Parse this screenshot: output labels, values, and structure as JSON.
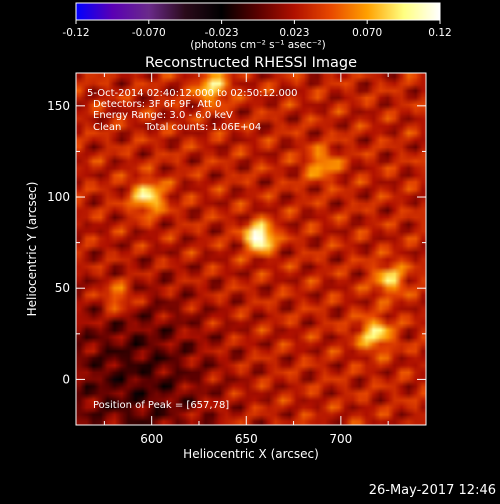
{
  "chart_data": {
    "type": "heatmap",
    "title": "Reconstructed RHESSI Image",
    "xlabel": "Heliocentric X (arcsec)",
    "ylabel": "Heliocentric Y (arcsec)",
    "xlim": [
      560,
      745
    ],
    "ylim": [
      -25,
      168
    ],
    "xticks": [
      600,
      650,
      700
    ],
    "yticks": [
      0,
      50,
      100,
      150
    ],
    "colorbar": {
      "min": -0.12,
      "max": 0.12,
      "tick_labels": [
        "-0.12",
        "-0.070",
        "-0.023",
        "0.023",
        "0.070",
        "0.12"
      ],
      "units": "(photons cm⁻² s⁻¹ asec⁻²)",
      "colors": [
        "#0000ff",
        "#5a00b4",
        "#6a2a8a",
        "#2a0a1a",
        "#000000",
        "#5a0000",
        "#b01000",
        "#e84800",
        "#ffa000",
        "#ffff80",
        "#ffffff"
      ]
    },
    "annotations": {
      "time_range": "5-Oct-2014 02:40:12.000 to 02:50:12.000",
      "detectors": "Detectors: 3F 6F 9F, Att 0",
      "energy": "Energy Range: 3.0 - 6.0 keV",
      "clean": "Clean",
      "total_counts": "Total counts: 1.06E+04",
      "peak": "Position of Peak = [657,78]"
    },
    "peak": {
      "x": 657,
      "y": 78
    },
    "secondary_sources": [
      {
        "x": 598,
        "y": 100,
        "intensity": 0.07
      },
      {
        "x": 718,
        "y": 25,
        "intensity": 0.065
      },
      {
        "x": 726,
        "y": 55,
        "intensity": 0.055
      },
      {
        "x": 632,
        "y": 160,
        "intensity": 0.06
      },
      {
        "x": 582,
        "y": 45,
        "intensity": 0.045
      },
      {
        "x": 690,
        "y": 118,
        "intensity": 0.045
      }
    ],
    "negative_region": {
      "x": 590,
      "y": 0,
      "intensity": -0.035
    }
  },
  "footer": {
    "timestamp": "26-May-2017 12:46"
  }
}
